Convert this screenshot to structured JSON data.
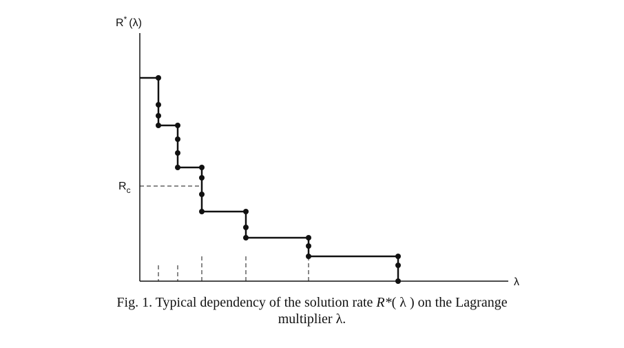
{
  "figure": {
    "y_axis_label": {
      "base": "R",
      "sup": "*",
      "arg": "(λ)"
    },
    "threshold_label": {
      "base": "R",
      "sub": "c"
    },
    "x_axis_label": "λ",
    "caption": {
      "line1": [
        "Fig. 1. Typical dependency of the solution rate ",
        "R*",
        "( λ ) on the Lagrange"
      ],
      "line2": "multiplier λ."
    }
  }
}
